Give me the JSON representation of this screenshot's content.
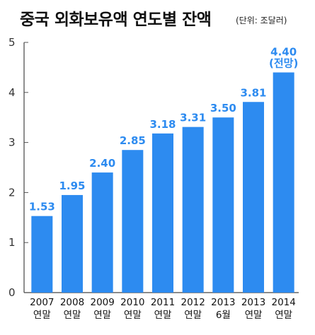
{
  "chart_data": {
    "type": "bar",
    "title": "중국 외화보유액 연도별 잔액",
    "unit_note": "(단위: 조달러)",
    "categories": [
      [
        "2007",
        "연말"
      ],
      [
        "2008",
        "연말"
      ],
      [
        "2009",
        "연말"
      ],
      [
        "2010",
        "연말"
      ],
      [
        "2011",
        "연말"
      ],
      [
        "2012",
        "연말"
      ],
      [
        "2013",
        "6월"
      ],
      [
        "2013",
        "연말"
      ],
      [
        "2014",
        "연말"
      ]
    ],
    "values": [
      1.53,
      1.95,
      2.4,
      2.85,
      3.18,
      3.31,
      3.5,
      3.81,
      4.4
    ],
    "data_labels": [
      [
        "1.53"
      ],
      [
        "1.95"
      ],
      [
        "2.40"
      ],
      [
        "2.85"
      ],
      [
        "3.18"
      ],
      [
        "3.31"
      ],
      [
        "3.50"
      ],
      [
        "3.81"
      ],
      [
        "4.40",
        "(전망)"
      ]
    ],
    "yticks": [
      "0",
      "1",
      "2",
      "3",
      "4",
      "5"
    ],
    "ylim": [
      0,
      5
    ],
    "grid": false,
    "bar_color": "#2d8bf0",
    "label_color": "#2d8bf0"
  }
}
